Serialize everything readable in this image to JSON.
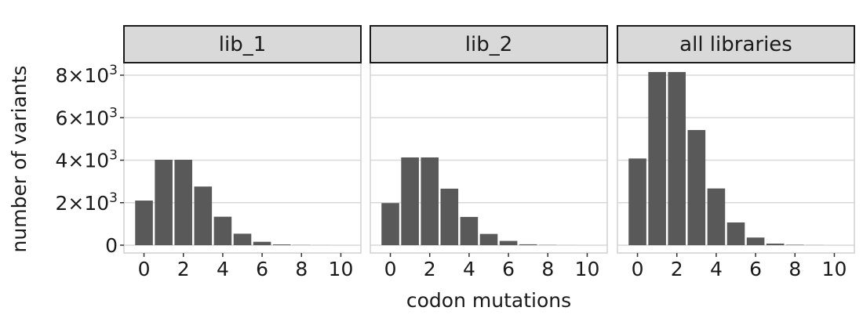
{
  "chart_data": {
    "type": "bar",
    "facet": "columns",
    "xlabel": "codon mutations",
    "ylabel": "number of variants",
    "xlim": [
      -0.5,
      10.5
    ],
    "ylim": [
      0,
      9000
    ],
    "x_ticks": [
      "0",
      "2",
      "4",
      "6",
      "8",
      "10"
    ],
    "y_ticks": [
      {
        "value": 0,
        "label": "0"
      },
      {
        "value": 2000,
        "label": "2×10",
        "exp": "3"
      },
      {
        "value": 4000,
        "label": "4×10",
        "exp": "3"
      },
      {
        "value": 6000,
        "label": "6×10",
        "exp": "3"
      },
      {
        "value": 8000,
        "label": "8×10",
        "exp": "3"
      }
    ],
    "grid": true,
    "bar_color": "#595959",
    "strip_color": "#d9d9d9",
    "grid_color": "#d9d9d9",
    "x": [
      0,
      1,
      2,
      3,
      4,
      5,
      6,
      7,
      8,
      9,
      10
    ],
    "panels": [
      {
        "label": "lib_1",
        "values": [
          2100,
          4020,
          4020,
          2760,
          1340,
          540,
          160,
          35,
          8,
          2,
          0
        ]
      },
      {
        "label": "lib_2",
        "values": [
          1980,
          4130,
          4130,
          2660,
          1330,
          530,
          200,
          40,
          10,
          2,
          0
        ]
      },
      {
        "label": "all libraries",
        "values": [
          4080,
          8150,
          8150,
          5420,
          2670,
          1070,
          360,
          75,
          18,
          4,
          0
        ]
      }
    ]
  }
}
